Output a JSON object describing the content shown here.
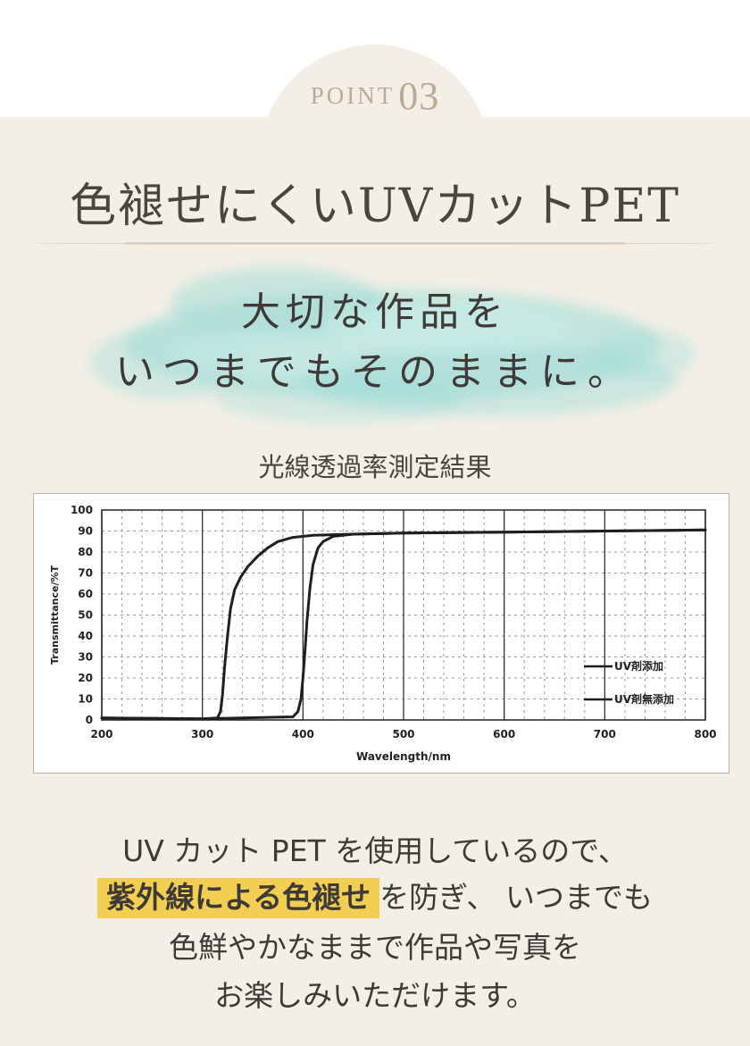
{
  "header": {
    "point_word": "POINT",
    "point_number": "03",
    "title": "色褪せにくいUVカットPET"
  },
  "tagline": {
    "line1": "大切な作品を",
    "line2": "いつまでもそのままに。"
  },
  "chart_heading": "光線透過率測定結果",
  "chart_data": {
    "type": "line",
    "title": "",
    "xlabel": "Wavelength/nm",
    "ylabel": "Transmittance/%T",
    "xlim": [
      200,
      800
    ],
    "ylim": [
      0,
      100
    ],
    "xticks": [
      "200",
      "300",
      "400",
      "500",
      "600",
      "700",
      "800"
    ],
    "yticks": [
      "0",
      "10",
      "20",
      "30",
      "40",
      "50",
      "60",
      "70",
      "80",
      "90",
      "100"
    ],
    "grid": true,
    "legend_position": "bottom-right",
    "series": [
      {
        "name": "UV剤添加",
        "x": [
          200,
          300,
          390,
          395,
          398,
          400,
          402,
          404,
          407,
          410,
          415,
          420,
          430,
          450,
          500,
          600,
          700,
          800
        ],
        "y": [
          1,
          0.5,
          1.5,
          4,
          10,
          20,
          33,
          47,
          63,
          74,
          82,
          85,
          87.5,
          88.5,
          89,
          89.5,
          90,
          90.5
        ]
      },
      {
        "name": "UV剤無添加",
        "x": [
          200,
          300,
          315,
          318,
          320,
          322,
          325,
          328,
          332,
          338,
          345,
          355,
          365,
          375,
          390,
          410,
          450,
          500,
          600,
          700,
          800
        ],
        "y": [
          1,
          0.5,
          1,
          4,
          12,
          25,
          40,
          53,
          62,
          68,
          73,
          78,
          82,
          85,
          87,
          88,
          88.5,
          89,
          89.5,
          90,
          90.5
        ]
      }
    ]
  },
  "description": {
    "line1": "UV カット PET を使用しているので、",
    "line2_highlight": "紫外線による色褪せ",
    "line2_rest1": "を防ぎ、",
    "line2_rest2": "いつまでも",
    "line3": "色鮮やかなままで作品や写真を",
    "line4": "お楽しみいただけます。"
  },
  "colors": {
    "panel": "#f3efe6",
    "accent_highlight": "#f2cf52",
    "point_label": "#b9ab98",
    "watercolor": "#9fdcd6"
  }
}
